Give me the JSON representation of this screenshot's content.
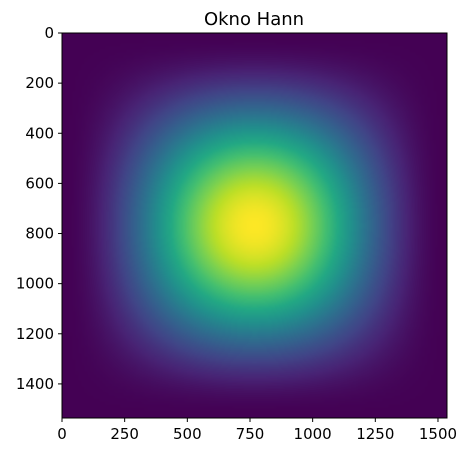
{
  "chart_data": {
    "type": "heatmap",
    "title": "Okno Hann",
    "xlabel": "",
    "ylabel": "",
    "colormap": "viridis",
    "description_of_values": "2D Hann window (outer product of 1D Hann windows), peak 1 at center, 0 at edges",
    "shape": [
      1536,
      1536
    ],
    "xlim": [
      0,
      1536
    ],
    "ylim": [
      1536,
      0
    ],
    "x_ticks": [
      0,
      250,
      500,
      750,
      1000,
      1250,
      1500
    ],
    "y_ticks": [
      0,
      200,
      400,
      600,
      800,
      1000,
      1200,
      1400
    ],
    "x_tick_labels": [
      "0",
      "250",
      "500",
      "750",
      "1000",
      "1250",
      "1500"
    ],
    "y_tick_labels": [
      "0",
      "200",
      "400",
      "600",
      "800",
      "1000",
      "1200",
      "1400"
    ],
    "value_range": [
      0,
      1
    ],
    "grid": false,
    "colors": {
      "viridis_stops": [
        "#440154",
        "#482475",
        "#414487",
        "#355f8d",
        "#2a788e",
        "#21918c",
        "#22a884",
        "#44bf70",
        "#7ad151",
        "#bddf26",
        "#fde725"
      ]
    }
  }
}
